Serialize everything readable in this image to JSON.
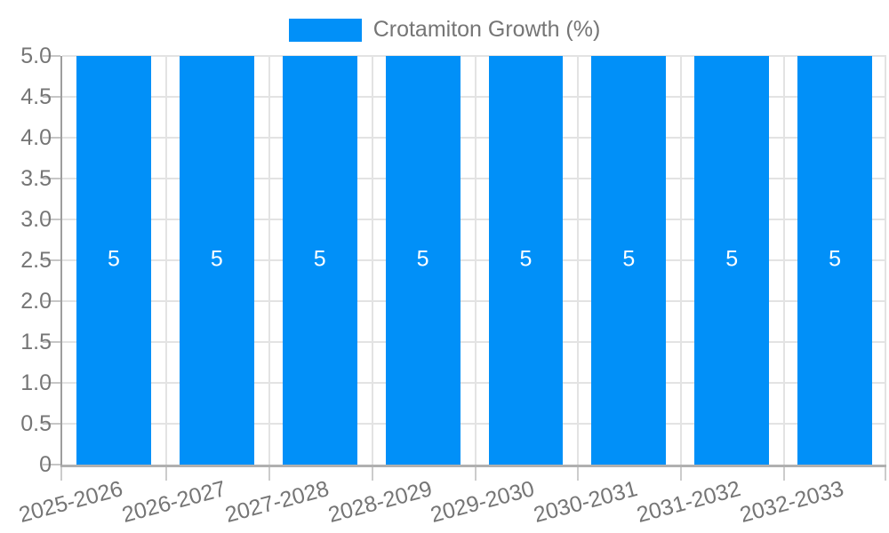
{
  "chart_data": {
    "type": "bar",
    "title": "",
    "xlabel": "",
    "ylabel": "",
    "legend": {
      "label": "Crotamiton Growth (%)",
      "position": "top-center"
    },
    "categories": [
      "2025-2026",
      "2026-2027",
      "2027-2028",
      "2028-2029",
      "2029-2030",
      "2030-2031",
      "2031-2032",
      "2032-2033"
    ],
    "series": [
      {
        "name": "Crotamiton Growth (%)",
        "values": [
          5,
          5,
          5,
          5,
          5,
          5,
          5,
          5
        ]
      }
    ],
    "bar_value_labels": [
      "5",
      "5",
      "5",
      "5",
      "5",
      "5",
      "5",
      "5"
    ],
    "ylim": [
      0,
      5
    ],
    "yticks": [
      {
        "value": 5.0,
        "label": "5.0"
      },
      {
        "value": 4.5,
        "label": "4.5"
      },
      {
        "value": 4.0,
        "label": "4.0"
      },
      {
        "value": 3.5,
        "label": "3.5"
      },
      {
        "value": 3.0,
        "label": "3.0"
      },
      {
        "value": 2.5,
        "label": "2.5"
      },
      {
        "value": 2.0,
        "label": "2.0"
      },
      {
        "value": 1.5,
        "label": "1.5"
      },
      {
        "value": 1.0,
        "label": "1.0"
      },
      {
        "value": 0.5,
        "label": "0.5"
      },
      {
        "value": 0,
        "label": "0"
      }
    ],
    "grid": true,
    "colors": {
      "bar": "#0190f8",
      "bar_label": "#ffffff",
      "axis_text": "#757575",
      "gridline": "#e3e3e3",
      "axis_line": "#9e9e9e",
      "bottom_axis_line": "#b0b0b0",
      "tick": "#c6c6c6",
      "background": "#ffffff"
    }
  }
}
